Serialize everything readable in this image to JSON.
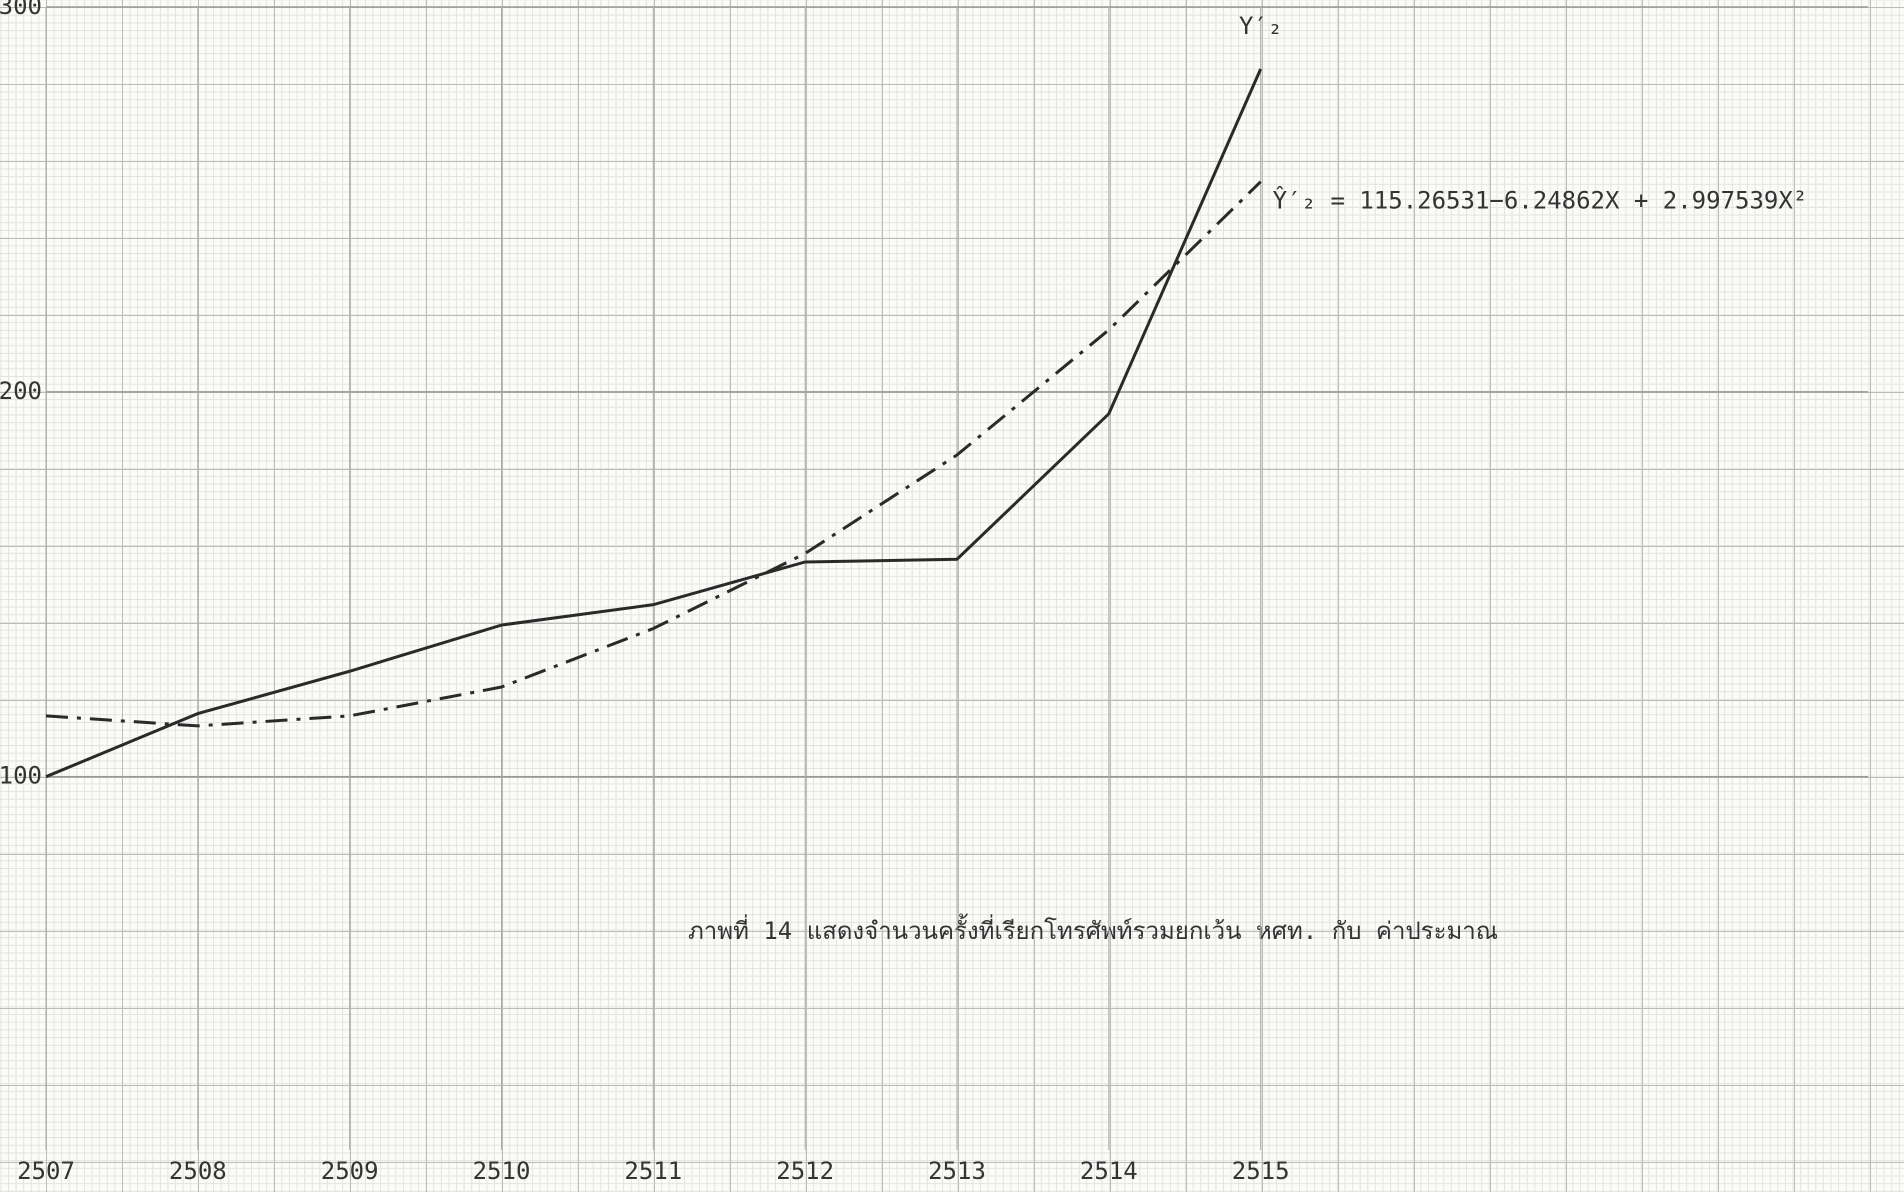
{
  "chart_data": {
    "type": "line",
    "title": "ภาพที่ 14  แสดงจำนวนครั้งที่เรียกโทรศัพท์รวมยกเว้น หศท. กับ ค่าประมาณ",
    "x": [
      2507,
      2508,
      2509,
      2510,
      2511,
      2512,
      2513,
      2514,
      2515
    ],
    "series": [
      {
        "name": "Y′₂",
        "color": "#2a2a2a",
        "line_style": "solid",
        "values": [
          100,
          116.4,
          127.4,
          139.4,
          144.7,
          155.8,
          156.5,
          194.3,
          283.9
        ]
      },
      {
        "name": "Ŷ′₂ = 115.26531−6.24862X + 2.997539X²",
        "color": "#2a2a2a",
        "line_style": "dashdot",
        "values": [
          115.8,
          113.2,
          115.8,
          123.3,
          138.5,
          158.0,
          183.6,
          216.1,
          254.6
        ]
      }
    ],
    "xlim": [
      2507,
      2519
    ],
    "ylim": [
      3,
      300
    ],
    "xticks": [
      2507,
      2508,
      2509,
      2510,
      2511,
      2512,
      2513,
      2514,
      2515
    ],
    "yticks": [
      100,
      200,
      300
    ],
    "grid": true
  }
}
